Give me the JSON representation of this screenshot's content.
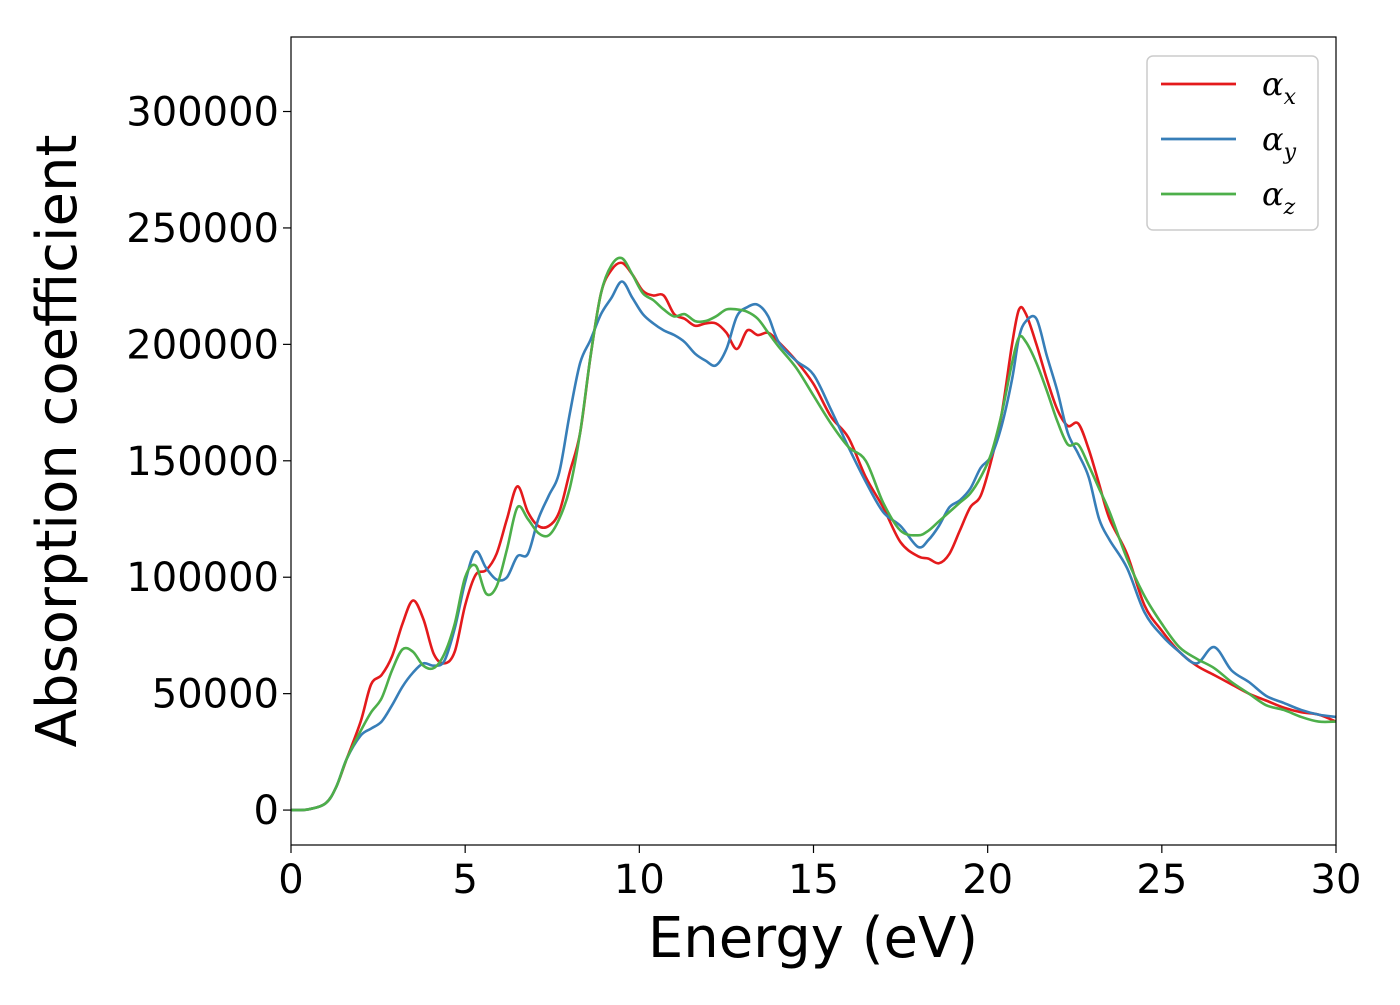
{
  "chart_data": {
    "type": "line",
    "title": "",
    "xlabel": "Energy (eV)",
    "ylabel": "Absorption coefficient",
    "xlim": [
      0,
      30
    ],
    "ylim": [
      -15000,
      332000
    ],
    "xticks": [
      0,
      5,
      10,
      15,
      20,
      25,
      30
    ],
    "yticks": [
      0,
      50000,
      100000,
      150000,
      200000,
      250000,
      300000
    ],
    "xtick_labels": [
      "0",
      "5",
      "10",
      "15",
      "20",
      "25",
      "30"
    ],
    "ytick_labels": [
      "0",
      "50000",
      "100000",
      "150000",
      "200000",
      "250000",
      "300000"
    ],
    "grid": false,
    "legend_position": "top-right",
    "series": [
      {
        "name": "α_x",
        "label_main": "α",
        "label_sub": "x",
        "color": "#e41a1c",
        "x": [
          0,
          0.5,
          1.0,
          1.3,
          1.6,
          2.0,
          2.3,
          2.6,
          2.9,
          3.2,
          3.5,
          3.8,
          4.1,
          4.4,
          4.7,
          5.0,
          5.3,
          5.6,
          5.9,
          6.2,
          6.5,
          6.8,
          7.1,
          7.4,
          7.7,
          8.0,
          8.3,
          8.6,
          8.9,
          9.2,
          9.5,
          9.8,
          10.1,
          10.4,
          10.7,
          11.0,
          11.3,
          11.6,
          11.9,
          12.2,
          12.5,
          12.8,
          13.1,
          13.4,
          13.7,
          14.0,
          14.5,
          15.0,
          15.5,
          16.0,
          16.5,
          17.0,
          17.5,
          18.0,
          18.3,
          18.6,
          18.9,
          19.2,
          19.5,
          19.8,
          20.1,
          20.4,
          20.7,
          20.9,
          21.1,
          21.4,
          21.7,
          22.0,
          22.3,
          22.6,
          22.9,
          23.2,
          23.5,
          24.0,
          24.5,
          25.0,
          25.5,
          26.0,
          26.5,
          27.0,
          27.5,
          28.0,
          28.5,
          29.0,
          29.5,
          30.0
        ],
        "y": [
          0,
          300,
          3000,
          10000,
          22000,
          38000,
          54000,
          58000,
          66000,
          80000,
          90000,
          82000,
          67000,
          63000,
          68000,
          88000,
          101000,
          103000,
          110000,
          125000,
          139000,
          128000,
          122000,
          122000,
          128000,
          145000,
          162000,
          195000,
          222000,
          232000,
          235000,
          230000,
          223000,
          221000,
          221000,
          213000,
          211000,
          208000,
          209000,
          209000,
          205000,
          198000,
          206000,
          204000,
          205000,
          201000,
          193000,
          183000,
          169000,
          160000,
          143000,
          130000,
          115000,
          109000,
          108000,
          106000,
          110000,
          120000,
          130000,
          135000,
          150000,
          170000,
          200000,
          215000,
          213000,
          200000,
          185000,
          172000,
          165000,
          166000,
          155000,
          140000,
          125000,
          110000,
          88000,
          77000,
          68000,
          62000,
          58000,
          54000,
          50000,
          47000,
          44000,
          42000,
          41000,
          38000
        ]
      },
      {
        "name": "α_y",
        "label_main": "α",
        "label_sub": "y",
        "color": "#377eb8",
        "x": [
          0,
          0.5,
          1.0,
          1.3,
          1.6,
          2.0,
          2.3,
          2.6,
          2.9,
          3.2,
          3.5,
          3.8,
          4.1,
          4.4,
          4.7,
          5.0,
          5.3,
          5.6,
          5.9,
          6.2,
          6.5,
          6.8,
          7.1,
          7.4,
          7.7,
          8.0,
          8.3,
          8.6,
          8.9,
          9.2,
          9.5,
          9.8,
          10.1,
          10.4,
          10.7,
          11.0,
          11.3,
          11.6,
          11.9,
          12.2,
          12.5,
          12.8,
          13.1,
          13.4,
          13.7,
          14.0,
          14.5,
          15.0,
          15.5,
          16.0,
          16.5,
          17.0,
          17.5,
          18.0,
          18.3,
          18.6,
          18.9,
          19.2,
          19.5,
          19.8,
          20.1,
          20.4,
          20.7,
          20.9,
          21.1,
          21.4,
          21.7,
          22.0,
          22.3,
          22.6,
          22.9,
          23.2,
          23.5,
          24.0,
          24.5,
          25.0,
          25.5,
          26.0,
          26.5,
          27.0,
          27.5,
          28.0,
          28.5,
          29.0,
          29.5,
          30.0
        ],
        "y": [
          0,
          300,
          3000,
          10000,
          22000,
          32000,
          35000,
          38000,
          45000,
          53000,
          59000,
          63000,
          62000,
          64000,
          78000,
          98000,
          111000,
          104000,
          99000,
          100000,
          109000,
          110000,
          125000,
          135000,
          145000,
          170000,
          192000,
          202000,
          213000,
          220000,
          227000,
          220000,
          213000,
          209000,
          206000,
          204000,
          201000,
          196000,
          193000,
          191000,
          198000,
          212000,
          216000,
          217000,
          212000,
          201000,
          193000,
          187000,
          172000,
          156000,
          141000,
          128000,
          122000,
          113000,
          116000,
          122000,
          130000,
          133000,
          138000,
          147000,
          152000,
          165000,
          185000,
          203000,
          210000,
          211000,
          195000,
          180000,
          162000,
          153000,
          143000,
          125000,
          116000,
          104000,
          85000,
          75000,
          68000,
          63000,
          70000,
          60000,
          55000,
          49000,
          46000,
          43000,
          41000,
          40000
        ]
      },
      {
        "name": "α_z",
        "label_main": "α",
        "label_sub": "z",
        "color": "#4daf4a",
        "x": [
          0,
          0.5,
          1.0,
          1.3,
          1.6,
          2.0,
          2.3,
          2.6,
          2.9,
          3.2,
          3.5,
          3.8,
          4.1,
          4.4,
          4.7,
          5.0,
          5.3,
          5.6,
          5.9,
          6.2,
          6.5,
          6.8,
          7.1,
          7.4,
          7.7,
          8.0,
          8.3,
          8.6,
          8.9,
          9.2,
          9.5,
          9.8,
          10.1,
          10.4,
          10.7,
          11.0,
          11.3,
          11.6,
          11.9,
          12.2,
          12.5,
          12.8,
          13.1,
          13.4,
          13.7,
          14.0,
          14.5,
          15.0,
          15.5,
          16.0,
          16.5,
          17.0,
          17.5,
          18.0,
          18.3,
          18.6,
          18.9,
          19.2,
          19.5,
          19.8,
          20.1,
          20.4,
          20.7,
          20.9,
          21.1,
          21.4,
          21.7,
          22.0,
          22.3,
          22.6,
          22.9,
          23.2,
          23.5,
          24.0,
          24.5,
          25.0,
          25.5,
          26.0,
          26.5,
          27.0,
          27.5,
          28.0,
          28.5,
          29.0,
          29.5,
          30.0
        ],
        "y": [
          0,
          300,
          3000,
          10000,
          22000,
          34000,
          42000,
          48000,
          60000,
          69000,
          68000,
          62000,
          61000,
          67000,
          80000,
          100000,
          105000,
          93000,
          96000,
          112000,
          130000,
          125000,
          119000,
          118000,
          125000,
          138000,
          162000,
          195000,
          222000,
          234000,
          237000,
          230000,
          222000,
          219000,
          215000,
          212000,
          213000,
          210000,
          210000,
          212000,
          215000,
          215000,
          214000,
          211000,
          205000,
          199000,
          190000,
          178000,
          166000,
          156000,
          150000,
          132000,
          120000,
          118000,
          120000,
          124000,
          128000,
          132000,
          136000,
          143000,
          153000,
          170000,
          192000,
          203000,
          201000,
          192000,
          180000,
          167000,
          157000,
          157000,
          148000,
          138000,
          128000,
          108000,
          92000,
          80000,
          70000,
          65000,
          61000,
          55000,
          50000,
          45000,
          43000,
          40000,
          38000,
          38000
        ]
      }
    ]
  }
}
